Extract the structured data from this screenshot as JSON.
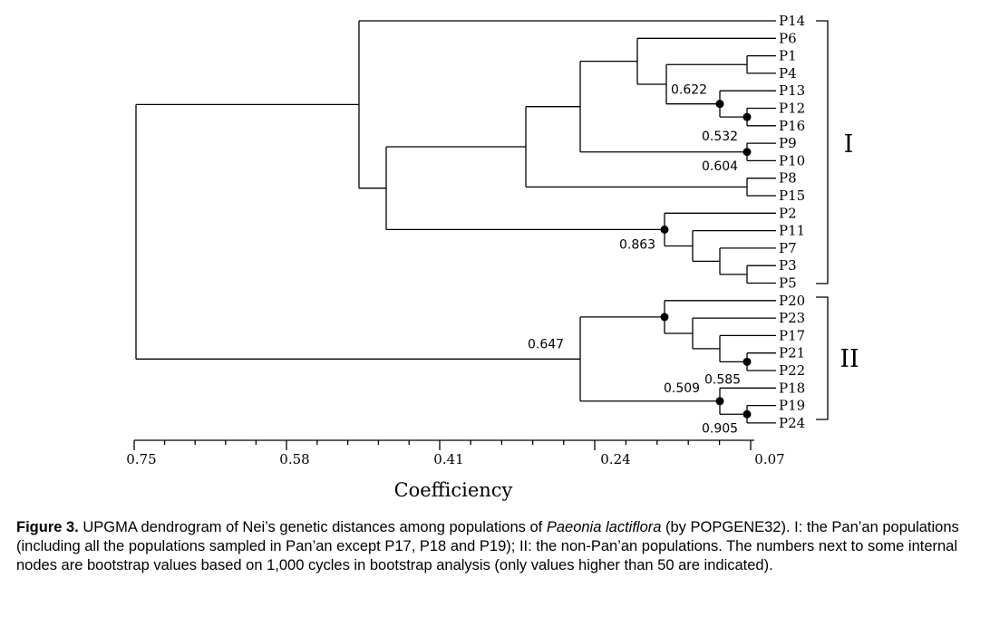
{
  "dendrogram": {
    "leaves": [
      "P14",
      "P6",
      "P1",
      "P4",
      "P13",
      "P12",
      "P16",
      "P9",
      "P10",
      "P8",
      "P15",
      "P2",
      "P11",
      "P7",
      "P3",
      "P5",
      "P20",
      "P23",
      "P17",
      "P21",
      "P22",
      "P18",
      "P19",
      "P24"
    ],
    "bootstrap": [
      {
        "node": "n_p13_p12_p16",
        "value": "0.622"
      },
      {
        "node": "n_p12_p16",
        "value": "0.532"
      },
      {
        "node": "n_p9_p10",
        "value": "0.604"
      },
      {
        "node": "n_p2_group",
        "value": "0.863"
      },
      {
        "node": "n_groupII",
        "value": "0.647"
      },
      {
        "node": "n_p21_p22",
        "value": "0.585"
      },
      {
        "node": "n_p18_group",
        "value": "0.509"
      },
      {
        "node": "n_p19_p24",
        "value": "0.905"
      }
    ],
    "axis": {
      "ticks": [
        "0.75",
        "0.58",
        "0.41",
        "0.24",
        "0.07"
      ],
      "title": "Coefficiency"
    },
    "groups": [
      {
        "label": "I",
        "from": "P14",
        "to": "P5"
      },
      {
        "label": "II",
        "from": "P20",
        "to": "P24"
      }
    ]
  },
  "caption": {
    "label": "Figure 3.",
    "text_before_species": " UPGMA dendrogram of Nei’s genetic distances among populations of ",
    "species": "Paeonia lactiflora",
    "text_after_species": " (by POPGENE32). I: the Pan’an populations (including all the populations sampled in Pan’an except P17, P18 and P19); II: the non-Pan’an populations. The numbers next to some internal nodes are bootstrap values based on 1,000 cycles in bootstrap analysis (only values higher than 50 are indicated)."
  }
}
